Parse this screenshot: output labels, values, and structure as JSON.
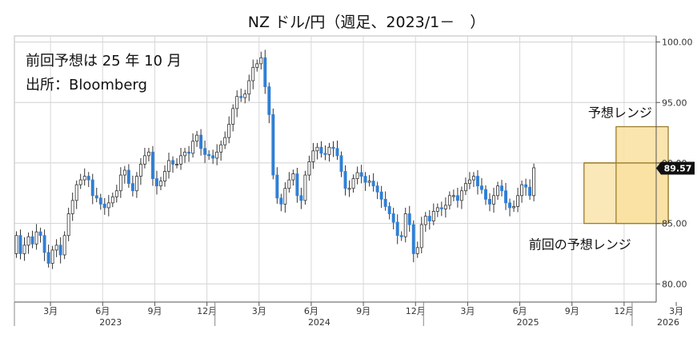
{
  "chart_data": {
    "type": "candlestick",
    "title": "NZ ドル/円（週足、2023/1－　）",
    "notes": [
      "前回予想は 25 年 10 月",
      "出所：Bloomberg"
    ],
    "ylim": [
      78.5,
      100.5
    ],
    "yticks": [
      80,
      85,
      90,
      95,
      100
    ],
    "ytick_labels": [
      "80.00",
      "85.00",
      "90.00",
      "95.00",
      "100.00"
    ],
    "xlim": [
      0,
      160
    ],
    "grid": true,
    "month_ticks": [
      {
        "x": 9,
        "label": "3月"
      },
      {
        "x": 22,
        "label": "6月"
      },
      {
        "x": 35,
        "label": "9月"
      },
      {
        "x": 48,
        "label": "12月"
      },
      {
        "x": 61,
        "label": "3月"
      },
      {
        "x": 74,
        "label": "6月"
      },
      {
        "x": 87,
        "label": "9月"
      },
      {
        "x": 100,
        "label": "12月"
      },
      {
        "x": 113,
        "label": "3月"
      },
      {
        "x": 126,
        "label": "6月"
      },
      {
        "x": 139,
        "label": "9月"
      },
      {
        "x": 152,
        "label": "12月"
      },
      {
        "x": 165,
        "label": "3月"
      }
    ],
    "year_labels": [
      {
        "x": 24,
        "label": "2023"
      },
      {
        "x": 76,
        "label": "2024"
      },
      {
        "x": 128,
        "label": "2025"
      },
      {
        "x": 163,
        "label": "2026"
      }
    ],
    "year_separators": [
      -2,
      50,
      102,
      154
    ],
    "current_value": 89.57,
    "current_label": "89.57",
    "forecast_range": {
      "label": "予想レンジ",
      "x0": 150,
      "x1": 163,
      "low": 85.0,
      "high": 93.0
    },
    "previous_range": {
      "label": "前回の予想レンジ",
      "x0": 142,
      "x1": 163,
      "low": 85.0,
      "high": 90.0
    },
    "closes": [
      84.0,
      82.5,
      83.2,
      83.9,
      83.3,
      84.3,
      84.0,
      82.6,
      81.7,
      82.8,
      83.2,
      82.4,
      84.0,
      85.8,
      86.9,
      88.2,
      88.6,
      88.9,
      88.6,
      87.3,
      87.1,
      86.6,
      86.3,
      86.7,
      87.2,
      87.7,
      89.0,
      89.4,
      88.3,
      87.7,
      88.9,
      89.9,
      90.6,
      90.9,
      88.7,
      88.1,
      88.5,
      89.3,
      90.2,
      89.9,
      89.9,
      90.6,
      90.9,
      90.8,
      91.8,
      92.3,
      91.2,
      90.7,
      90.6,
      90.4,
      90.9,
      91.5,
      92.1,
      93.2,
      94.5,
      95.5,
      95.4,
      95.7,
      96.8,
      97.9,
      98.2,
      98.7,
      96.3,
      94.0,
      89.0,
      87.1,
      86.6,
      87.9,
      88.6,
      89.1,
      87.3,
      86.9,
      89.0,
      90.1,
      91.0,
      91.3,
      90.8,
      90.7,
      91.3,
      91.2,
      90.6,
      89.3,
      87.9,
      87.9,
      88.7,
      89.2,
      88.9,
      88.4,
      88.5,
      88.1,
      87.6,
      87.0,
      86.4,
      85.8,
      85.1,
      84.0,
      83.9,
      85.8,
      84.9,
      82.5,
      83.0,
      84.9,
      85.6,
      85.2,
      86.0,
      86.3,
      86.2,
      86.5,
      87.3,
      87.3,
      86.9,
      87.7,
      88.3,
      88.6,
      88.9,
      88.1,
      87.8,
      87.0,
      86.6,
      87.3,
      88.1,
      87.7,
      86.7,
      86.3,
      86.4,
      87.3,
      88.2,
      88.0,
      87.3,
      89.6
    ],
    "opens": [
      82.5,
      84.0,
      82.5,
      83.2,
      83.9,
      83.3,
      84.3,
      84.0,
      82.6,
      81.7,
      82.8,
      83.2,
      82.4,
      84.0,
      85.8,
      86.9,
      88.2,
      88.6,
      88.9,
      88.6,
      87.3,
      87.1,
      86.6,
      86.3,
      86.7,
      87.2,
      87.7,
      89.0,
      89.4,
      88.3,
      87.7,
      88.9,
      89.9,
      90.6,
      90.9,
      88.7,
      88.1,
      88.5,
      89.3,
      90.2,
      89.9,
      89.9,
      90.6,
      90.9,
      90.8,
      91.8,
      92.3,
      91.2,
      90.7,
      90.6,
      90.4,
      90.9,
      91.5,
      92.1,
      93.2,
      94.5,
      95.5,
      95.4,
      95.7,
      96.8,
      97.9,
      98.2,
      98.7,
      96.3,
      94.0,
      89.0,
      87.1,
      86.6,
      87.9,
      88.6,
      89.1,
      87.3,
      86.9,
      89.0,
      90.1,
      91.0,
      91.3,
      90.8,
      90.7,
      91.3,
      91.2,
      90.6,
      89.3,
      87.9,
      87.9,
      88.7,
      89.2,
      88.9,
      88.4,
      88.5,
      88.1,
      87.6,
      87.0,
      86.4,
      85.8,
      85.1,
      84.0,
      83.9,
      85.8,
      84.9,
      82.5,
      83.0,
      84.9,
      85.6,
      85.2,
      86.0,
      86.3,
      86.2,
      86.5,
      87.3,
      87.3,
      86.9,
      87.7,
      88.3,
      88.6,
      88.9,
      88.1,
      87.8,
      87.0,
      86.6,
      87.3,
      88.1,
      87.7,
      86.7,
      86.3,
      86.4,
      87.3,
      88.2,
      88.0,
      87.3
    ]
  }
}
